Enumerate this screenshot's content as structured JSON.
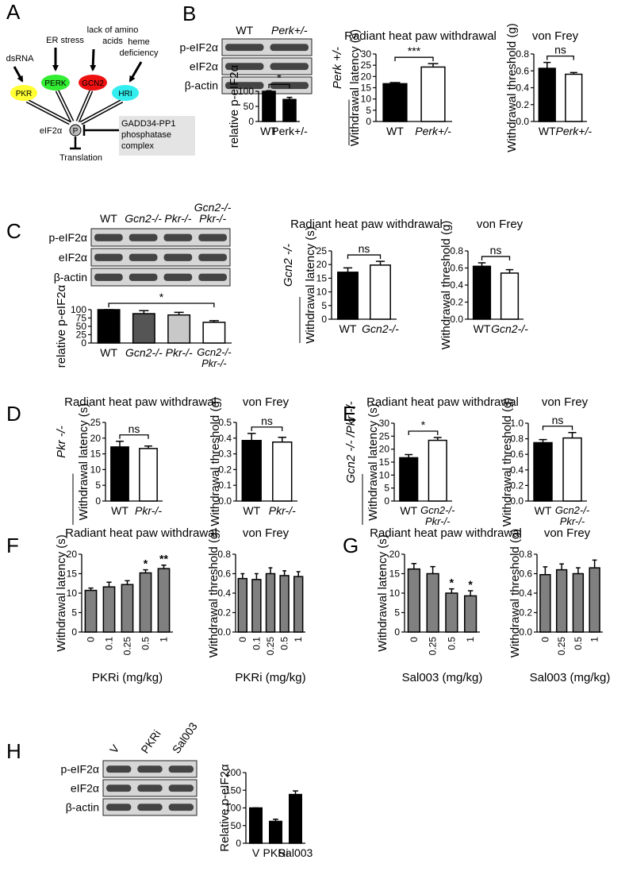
{
  "panel_letters": [
    "A",
    "B",
    "C",
    "D",
    "E",
    "F",
    "G",
    "H"
  ],
  "diagram": {
    "stimuli": [
      [
        "dsRNA"
      ],
      [
        "ER stress"
      ],
      [
        "lack of amino",
        "acids"
      ],
      [
        "heme",
        "deficiency"
      ]
    ],
    "kinases": [
      "PKR",
      "PERK",
      "GCN2",
      "HRI"
    ],
    "target": "eIF2α",
    "phospho": "P",
    "phosphatase": [
      "GADD34-PP1",
      "phosphatase",
      "complex"
    ],
    "output": "Translation"
  },
  "blots": [
    {
      "lanes": [
        "WT",
        "Perk+/-"
      ],
      "rows": [
        "p-eIF2α",
        "eIF2α",
        "β-actin"
      ]
    },
    {
      "lanes": [
        "WT",
        "Gcn2-/-",
        "Pkr-/-",
        [
          "Gcn2-/-",
          "Pkr-/-"
        ]
      ],
      "rows": [
        "p-eIF2α",
        "eIF2α",
        "β-actin"
      ]
    },
    {
      "lanes": [
        "V",
        "PKRi",
        "Sal003"
      ],
      "rows": [
        "p-eIF2α",
        "eIF2α",
        "β-actin"
      ]
    }
  ],
  "chart_data": [
    {
      "type": "bar",
      "ylabel": "relative p-eIF2α",
      "categories": [
        "WT",
        "Perk+/-"
      ],
      "values": [
        100,
        73
      ],
      "errors": [
        2,
        7
      ],
      "colors": [
        "#000000",
        "#000000"
      ],
      "ylim": [
        0,
        100
      ],
      "yticks": [
        0,
        50,
        100
      ],
      "significance": "*"
    },
    {
      "type": "bar",
      "title": "Radiant heat paw withdrawal",
      "side_label": "Perk +/-",
      "ylabel": "Withdrawal latency (s)",
      "categories": [
        "WT",
        "Perk+/-"
      ],
      "values": [
        16.8,
        24.2
      ],
      "errors": [
        0.5,
        1.5
      ],
      "colors": [
        "#000000",
        "#ffffff"
      ],
      "ylim": [
        0,
        30
      ],
      "yticks": [
        0,
        5,
        10,
        15,
        20,
        25,
        30
      ],
      "significance": "***"
    },
    {
      "type": "bar",
      "title": "von Frey",
      "ylabel": "Withdrawal threshold (g)",
      "categories": [
        "WT",
        "Perk+/-"
      ],
      "values": [
        0.63,
        0.56
      ],
      "errors": [
        0.07,
        0.02
      ],
      "colors": [
        "#000000",
        "#ffffff"
      ],
      "ylim": [
        0,
        0.8
      ],
      "yticks": [
        {
          "value": 0,
          "label": "0.0"
        },
        0.2,
        0.4,
        0.6,
        0.8
      ],
      "significance": "ns"
    },
    {
      "type": "bar",
      "ylabel": "relative p-eIF2α",
      "categories": [
        "WT",
        "Gcn2-/-",
        "Pkr-/-",
        [
          "Gcn2-/-",
          "Pkr-/-"
        ]
      ],
      "values": [
        100,
        88,
        84,
        62
      ],
      "errors": [
        0,
        9,
        8,
        5
      ],
      "colors": [
        "#000000",
        "#555555",
        "#c8c8c8",
        "#ffffff"
      ],
      "ylim": [
        0,
        100
      ],
      "yticks": [
        0,
        25,
        50,
        75,
        100
      ],
      "significance": "*"
    },
    {
      "type": "bar",
      "title": "Radiant heat paw withdrawal",
      "side_label": "Gcn2 -/-",
      "ylabel": "Withdrawal latency (s)",
      "categories": [
        "WT",
        "Gcn2-/-"
      ],
      "values": [
        17.2,
        19.8
      ],
      "errors": [
        1.6,
        1.4
      ],
      "colors": [
        "#000000",
        "#ffffff"
      ],
      "ylim": [
        0,
        25
      ],
      "yticks": [
        0,
        5,
        10,
        15,
        20,
        25
      ],
      "significance": "ns"
    },
    {
      "type": "bar",
      "title": "von Frey",
      "ylabel": "Withdrawal threshold (g)",
      "categories": [
        "WT",
        "Gcn2-/-"
      ],
      "values": [
        0.62,
        0.54
      ],
      "errors": [
        0.04,
        0.04
      ],
      "colors": [
        "#000000",
        "#ffffff"
      ],
      "ylim": [
        0,
        0.8
      ],
      "yticks": [
        {
          "value": 0,
          "label": "0.0"
        },
        0.2,
        0.4,
        0.6,
        0.8
      ],
      "significance": "ns"
    },
    {
      "type": "bar",
      "title": "Radiant heat paw withdrawal",
      "side_label": "Pkr -/-",
      "ylabel": "Withdrawal latency (s)",
      "categories": [
        "WT",
        "Pkr-/-"
      ],
      "values": [
        17.2,
        16.7
      ],
      "errors": [
        1.8,
        0.8
      ],
      "colors": [
        "#000000",
        "#ffffff"
      ],
      "ylim": [
        0,
        25
      ],
      "yticks": [
        0,
        5,
        10,
        15,
        20,
        25
      ],
      "significance": "ns"
    },
    {
      "type": "bar",
      "title": "von Frey",
      "ylabel": "Withdrawal threshold (g)",
      "categories": [
        "WT",
        "Pkr-/-"
      ],
      "values": [
        0.385,
        0.375
      ],
      "errors": [
        0.045,
        0.03
      ],
      "colors": [
        "#000000",
        "#ffffff"
      ],
      "ylim": [
        0,
        0.5
      ],
      "yticks": [
        {
          "value": 0,
          "label": "0.0"
        },
        0.1,
        0.2,
        0.3,
        0.4,
        0.5
      ],
      "significance": "ns"
    },
    {
      "type": "bar",
      "title": "Radiant heat paw withdrawal",
      "side_label": "Gcn2 -/- /Pkr -/-",
      "ylabel": "Withdrawal latency (s)",
      "categories": [
        "WT",
        [
          "Gcn2-/-",
          "Pkr-/-"
        ]
      ],
      "values": [
        16.7,
        23.4
      ],
      "errors": [
        1.2,
        1.1
      ],
      "colors": [
        "#000000",
        "#ffffff"
      ],
      "ylim": [
        0,
        30
      ],
      "yticks": [
        0,
        5,
        10,
        15,
        20,
        25,
        30
      ],
      "significance": "*"
    },
    {
      "type": "bar",
      "title": "von Frey",
      "ylabel": "Withdrawal threshold (g)",
      "categories": [
        "WT",
        [
          "Gcn2-/-",
          "Pkr-/-"
        ]
      ],
      "values": [
        0.75,
        0.81
      ],
      "errors": [
        0.04,
        0.07
      ],
      "colors": [
        "#000000",
        "#ffffff"
      ],
      "ylim": [
        0,
        1
      ],
      "yticks": [
        {
          "value": 0,
          "label": "0.0"
        },
        0.2,
        0.4,
        0.6,
        0.8,
        {
          "value": 1,
          "label": "1.0"
        }
      ],
      "significance": "ns"
    },
    {
      "type": "bar",
      "title": "Radiant heat paw withdrawal",
      "ylabel": "Withdrawal latency (s)",
      "xlabel": "PKRi (mg/kg)",
      "categories": [
        "0",
        "0.1",
        "0.25",
        "0.5",
        "1"
      ],
      "values": [
        10.7,
        11.6,
        12.2,
        15.2,
        16.3
      ],
      "errors": [
        0.6,
        1.2,
        1.0,
        0.8,
        0.9
      ],
      "colors": [
        "#808080",
        "#808080",
        "#808080",
        "#808080",
        "#808080"
      ],
      "ylim": [
        0,
        20
      ],
      "yticks": [
        0,
        5,
        10,
        15,
        20
      ],
      "stars": [
        null,
        null,
        null,
        "*",
        "**"
      ]
    },
    {
      "type": "bar",
      "title": "von Frey",
      "ylabel": "Withdrawal threshold (g)",
      "xlabel": "PKRi (mg/kg)",
      "categories": [
        "0",
        "0.1",
        "0.25",
        "0.5",
        "1"
      ],
      "values": [
        0.55,
        0.54,
        0.6,
        0.58,
        0.57
      ],
      "errors": [
        0.05,
        0.06,
        0.06,
        0.05,
        0.05
      ],
      "colors": [
        "#808080",
        "#808080",
        "#808080",
        "#808080",
        "#808080"
      ],
      "ylim": [
        0,
        0.8
      ],
      "yticks": [
        {
          "value": 0,
          "label": "0.0"
        },
        0.2,
        0.4,
        0.6,
        0.8
      ]
    },
    {
      "type": "bar",
      "title": "Radiant heat paw withdrawal",
      "ylabel": "Withdrawal latency (s)",
      "xlabel": "Sal003 (mg/kg)",
      "categories": [
        "0",
        "0.25",
        "0.5",
        "1"
      ],
      "values": [
        16.2,
        15.0,
        10.0,
        9.3
      ],
      "errors": [
        1.4,
        1.8,
        1.1,
        1.3
      ],
      "colors": [
        "#808080",
        "#808080",
        "#808080",
        "#808080"
      ],
      "ylim": [
        0,
        20
      ],
      "yticks": [
        0,
        5,
        10,
        15,
        20
      ],
      "stars": [
        null,
        null,
        "*",
        "*"
      ]
    },
    {
      "type": "bar",
      "title": "von Frey",
      "ylabel": "Withdrawal threshold (g)",
      "xlabel": "Sal003 (mg/kg)",
      "categories": [
        "0",
        "0.25",
        "0.5",
        "1"
      ],
      "values": [
        0.59,
        0.64,
        0.6,
        0.66
      ],
      "errors": [
        0.08,
        0.06,
        0.06,
        0.08
      ],
      "colors": [
        "#808080",
        "#808080",
        "#808080",
        "#808080"
      ],
      "ylim": [
        0,
        0.8
      ],
      "yticks": [
        {
          "value": 0,
          "label": "0.0"
        },
        0.2,
        0.4,
        0.6,
        0.8
      ]
    },
    {
      "type": "bar",
      "ylabel": "Relative p-eIF2α",
      "categories": [
        "V",
        "PKRi",
        "Sal003"
      ],
      "values": [
        100,
        62,
        138
      ],
      "errors": [
        0,
        6,
        10
      ],
      "colors": [
        "#000000",
        "#000000",
        "#000000"
      ],
      "ylim": [
        0,
        200
      ],
      "yticks": [
        0,
        50,
        100,
        150,
        200
      ]
    }
  ]
}
